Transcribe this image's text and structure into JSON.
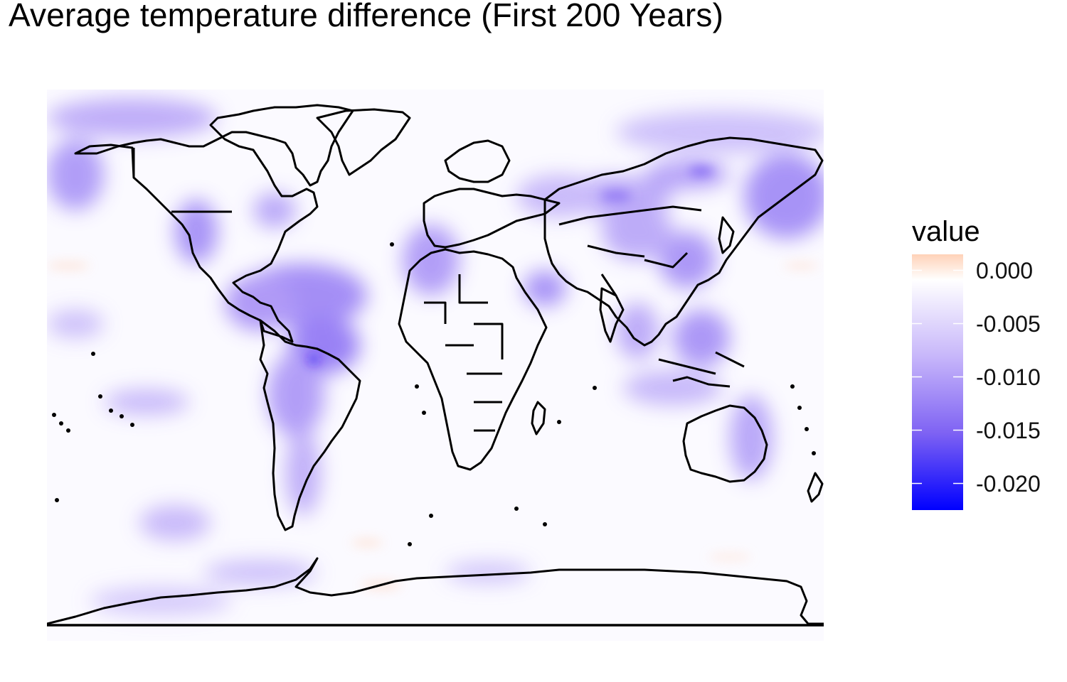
{
  "title": "Average temperature difference (First 200 Years)",
  "legend": {
    "title": "value",
    "ticks": [
      {
        "value": 0.0,
        "label": "0.000"
      },
      {
        "value": -0.005,
        "label": "-0.005"
      },
      {
        "value": -0.01,
        "label": "-0.010"
      },
      {
        "value": -0.015,
        "label": "-0.015"
      },
      {
        "value": -0.02,
        "label": "-0.020"
      }
    ],
    "range": [
      -0.0225,
      0.0015
    ],
    "colors": {
      "low": "#0000ff",
      "mid": "#ffffff",
      "high": "#ffd2b8"
    }
  },
  "colors": {
    "background": "#ffffff",
    "coastline": "#000000",
    "strong_cooling": "#0000ff",
    "warming": "#ffd9c6"
  }
}
